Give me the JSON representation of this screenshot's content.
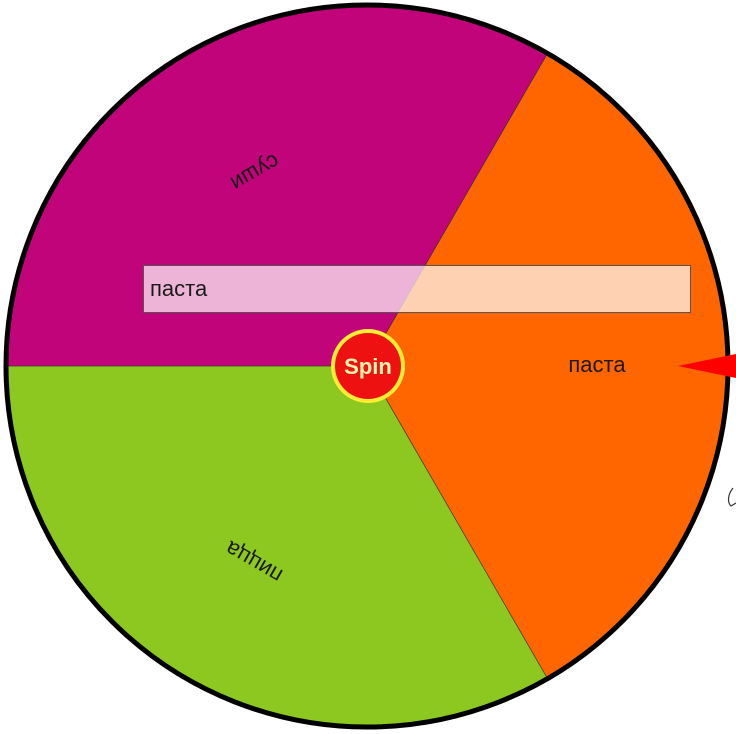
{
  "wheel": {
    "slices": [
      {
        "label": "паста",
        "color": "#ff6600"
      },
      {
        "label": "пицца",
        "color": "#8cc81f"
      },
      {
        "label": "суши",
        "color": "#c1047a"
      }
    ],
    "rim_color": "#000000",
    "pointer_color": "#ff0000"
  },
  "spin_button": {
    "label": "Spin",
    "color": "#ee1111",
    "ring_color": "#ffee33"
  },
  "result": {
    "text": "паста"
  }
}
